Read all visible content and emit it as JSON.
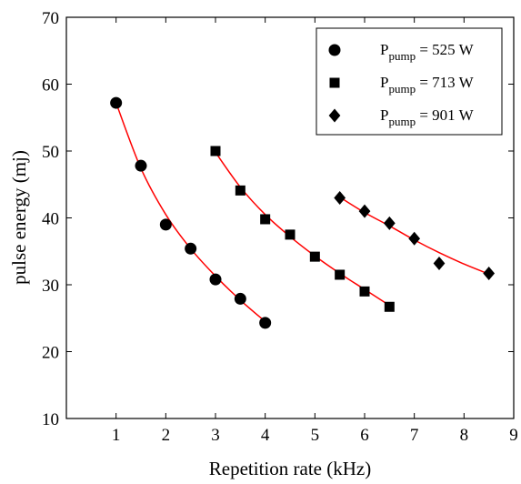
{
  "chart_data": {
    "type": "scatter",
    "xlabel": "Repetition rate (kHz)",
    "ylabel": "pulse energy (mj)",
    "xlim": [
      0,
      9
    ],
    "ylim": [
      10,
      70
    ],
    "xticks": [
      1,
      2,
      3,
      4,
      5,
      6,
      7,
      8,
      9
    ],
    "yticks": [
      10,
      20,
      30,
      40,
      50,
      60,
      70
    ],
    "grid": false,
    "legend_position": "top-right",
    "fit_color": "#ff0000",
    "marker_color": "#000000",
    "series": [
      {
        "legend_main": "P",
        "legend_sub": "pump",
        "legend_value": " = 525 W",
        "marker": "circle",
        "x": [
          1,
          1.5,
          2,
          2.5,
          3,
          3.5,
          4
        ],
        "y": [
          57.2,
          47.8,
          39.0,
          35.4,
          30.8,
          27.9,
          24.3
        ],
        "fit": [
          [
            1,
            57.2
          ],
          [
            1.5,
            47.4
          ],
          [
            2,
            40.5
          ],
          [
            2.5,
            35.4
          ],
          [
            3,
            31.3
          ],
          [
            3.5,
            27.7
          ],
          [
            4,
            24.5
          ]
        ]
      },
      {
        "legend_main": "P",
        "legend_sub": "pump",
        "legend_value": " = 713 W",
        "marker": "square",
        "x": [
          3,
          3.5,
          4,
          4.5,
          5,
          5.5,
          6,
          6.5
        ],
        "y": [
          50.0,
          44.1,
          39.8,
          37.5,
          34.2,
          31.5,
          29.0,
          26.7
        ],
        "fit": [
          [
            3,
            49.8
          ],
          [
            3.5,
            44.6
          ],
          [
            4,
            40.5
          ],
          [
            4.5,
            37.2
          ],
          [
            5,
            34.3
          ],
          [
            5.5,
            31.7
          ],
          [
            6,
            29.3
          ],
          [
            6.5,
            26.9
          ]
        ]
      },
      {
        "legend_main": "P",
        "legend_sub": "pump",
        "legend_value": " = 901 W",
        "marker": "diamond",
        "x": [
          5.5,
          6,
          6.5,
          7,
          7.5,
          8.5
        ],
        "y": [
          43.0,
          41.0,
          39.2,
          36.9,
          33.2,
          31.7
        ],
        "fit": [
          [
            5.5,
            43.1
          ],
          [
            6,
            40.8
          ],
          [
            6.5,
            38.8
          ],
          [
            7,
            36.7
          ],
          [
            7.5,
            34.8
          ],
          [
            8,
            33.1
          ],
          [
            8.5,
            31.6
          ]
        ]
      }
    ]
  }
}
